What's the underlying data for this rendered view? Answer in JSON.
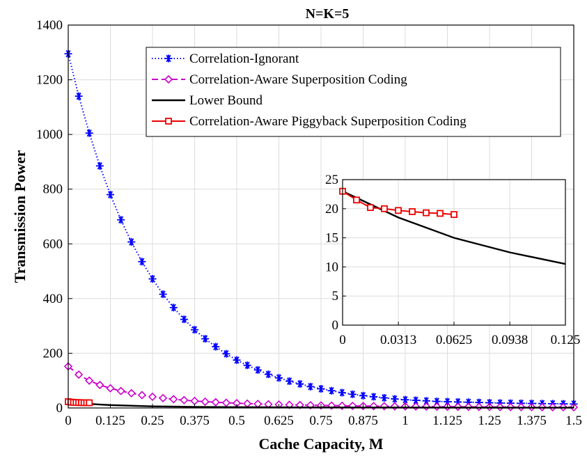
{
  "chart_data": {
    "type": "line",
    "title": "N=K=5",
    "xlabel": "Cache Capacity, M",
    "ylabel": "Transmission Power",
    "xlim": [
      0,
      1.5
    ],
    "ylim": [
      0,
      1400
    ],
    "grid": true,
    "legend_position": "top-right",
    "x_ticks": [
      "0",
      "0.125",
      "0.25",
      "0.375",
      "0.5",
      "0.625",
      "0.75",
      "0.875",
      "1",
      "1.125",
      "1.25",
      "1.375",
      "1.5"
    ],
    "y_ticks": [
      "0",
      "200",
      "400",
      "600",
      "800",
      "1000",
      "1200",
      "1400"
    ],
    "series": [
      {
        "name": "Correlation-Ignorant",
        "color": "#0000ff",
        "style": "dotted",
        "marker": "asterisk",
        "x": [
          0,
          0.03125,
          0.0625,
          0.09375,
          0.125,
          0.15625,
          0.1875,
          0.21875,
          0.25,
          0.28125,
          0.3125,
          0.34375,
          0.375,
          0.40625,
          0.4375,
          0.46875,
          0.5,
          0.53125,
          0.5625,
          0.59375,
          0.625,
          0.65625,
          0.6875,
          0.71875,
          0.75,
          0.78125,
          0.8125,
          0.84375,
          0.875,
          0.90625,
          0.9375,
          0.96875,
          1,
          1.03125,
          1.0625,
          1.09375,
          1.125,
          1.15625,
          1.1875,
          1.21875,
          1.25,
          1.28125,
          1.3125,
          1.34375,
          1.375,
          1.40625,
          1.4375,
          1.46875,
          1.5
        ],
        "y": [
          1295,
          1140,
          1005,
          885,
          780,
          688,
          607,
          535,
          472,
          416,
          367,
          324,
          286,
          253,
          224,
          198,
          175,
          156,
          139,
          123,
          110,
          98,
          88,
          78,
          70,
          63,
          56,
          50,
          45,
          41,
          37,
          33,
          30,
          28,
          26,
          24,
          23,
          22,
          21,
          20,
          19,
          18,
          17.5,
          17,
          16.5,
          16,
          15.5,
          15,
          14.5
        ]
      },
      {
        "name": "Correlation-Aware Superposition Coding",
        "color": "#cc00cc",
        "style": "dashed",
        "marker": "diamond",
        "x": [
          0,
          0.03125,
          0.0625,
          0.09375,
          0.125,
          0.15625,
          0.1875,
          0.21875,
          0.25,
          0.28125,
          0.3125,
          0.34375,
          0.375,
          0.40625,
          0.4375,
          0.46875,
          0.5,
          0.53125,
          0.5625,
          0.59375,
          0.625,
          0.65625,
          0.6875,
          0.71875,
          0.75,
          0.78125,
          0.8125,
          0.84375,
          0.875,
          0.90625,
          0.9375,
          0.96875,
          1,
          1.03125,
          1.0625,
          1.09375,
          1.125,
          1.15625,
          1.1875,
          1.21875,
          1.25,
          1.28125,
          1.3125,
          1.34375,
          1.375,
          1.40625,
          1.4375,
          1.46875,
          1.5
        ],
        "y": [
          152,
          122,
          100,
          84,
          72,
          62,
          54,
          47,
          41,
          36,
          32,
          28.5,
          25.5,
          23,
          21,
          19,
          17.5,
          16,
          14.7,
          13.5,
          12.5,
          11.6,
          10.8,
          10,
          9.3,
          8.7,
          8.1,
          7.6,
          7.1,
          6.7,
          6.3,
          5.9,
          5.6,
          5.3,
          5,
          4.7,
          4.5,
          4.3,
          4.1,
          3.9,
          3.7,
          3.5,
          3.3,
          3.2,
          3.1,
          3,
          2.9,
          2.8,
          2.7
        ]
      },
      {
        "name": "Lower Bound",
        "color": "#000000",
        "style": "solid",
        "marker": "none",
        "x": [
          0,
          0.03125,
          0.0625,
          0.09375,
          0.125,
          0.25,
          0.375,
          0.5,
          0.625,
          0.75,
          0.875,
          1,
          1.125,
          1.25,
          1.375,
          1.5
        ],
        "y": [
          23,
          18.5,
          15,
          12.5,
          10.5,
          6,
          4,
          3,
          2.5,
          2.1,
          1.8,
          1.6,
          1.4,
          1.3,
          1.2,
          1.1
        ]
      },
      {
        "name": "Correlation-Aware Piggyback Superposition Coding",
        "color": "#ee0000",
        "style": "solid",
        "marker": "square",
        "x": [
          0,
          0.0078125,
          0.015625,
          0.0234375,
          0.03125,
          0.0390625,
          0.046875,
          0.0546875,
          0.0625
        ],
        "y": [
          23,
          21.5,
          20.2,
          20,
          19.7,
          19.5,
          19.3,
          19.2,
          19
        ]
      }
    ],
    "inset": {
      "xlim": [
        0,
        0.125
      ],
      "ylim": [
        0,
        25
      ],
      "x_ticks": [
        "0",
        "0.0313",
        "0.0625",
        "0.0938",
        "0.125"
      ],
      "y_ticks": [
        "0",
        "5",
        "10",
        "15",
        "20",
        "25"
      ],
      "grid": true
    }
  }
}
